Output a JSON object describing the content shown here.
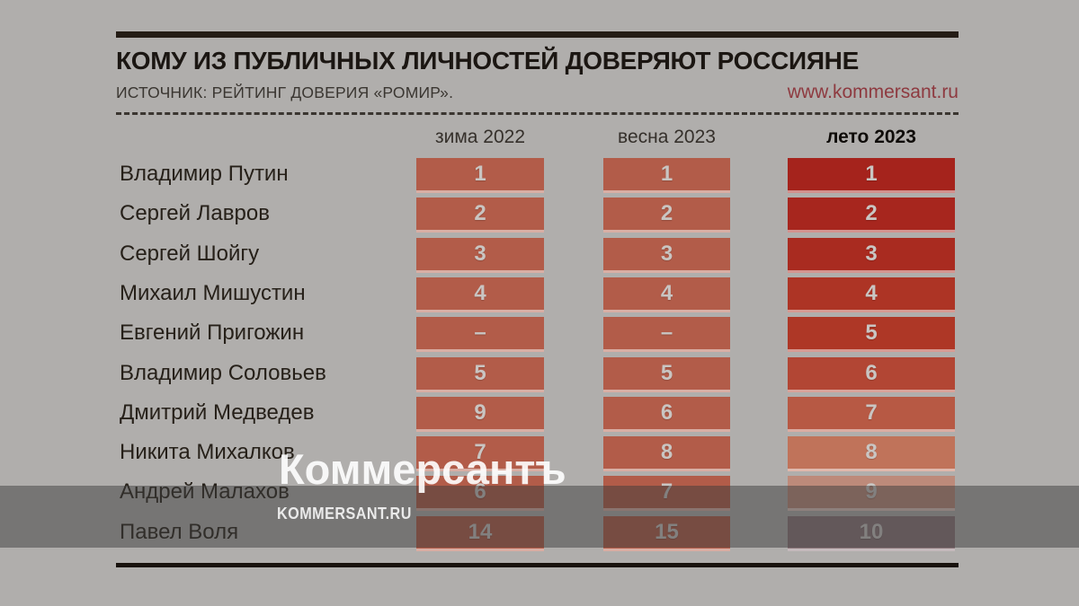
{
  "header": {
    "title": "КОМУ ИЗ ПУБЛИЧНЫХ ЛИЧНОСТЕЙ ДОВЕРЯЮТ РОССИЯНЕ",
    "source": "ИСТОЧНИК: РЕЙТИНГ ДОВЕРИЯ «РОМИР».",
    "url": "www.kommersant.ru"
  },
  "watermark": {
    "logo": "Коммерсантъ",
    "domain": "KOMMERSANT.RU"
  },
  "chart_data": {
    "type": "table",
    "title": "КОМУ ИЗ ПУБЛИЧНЫХ ЛИЧНОСТЕЙ ДОВЕРЯЮТ РОССИЯНЕ",
    "source": "РЕЙТИНГ ДОВЕРИЯ «РОМИР»",
    "columns": [
      "зима 2022",
      "весна 2023",
      "лето 2023"
    ],
    "value_meaning": "rank",
    "rows": [
      {
        "name": "Владимир Путин",
        "values": [
          "1",
          "1",
          "1"
        ]
      },
      {
        "name": "Сергей Лавров",
        "values": [
          "2",
          "2",
          "2"
        ]
      },
      {
        "name": "Сергей Шойгу",
        "values": [
          "3",
          "3",
          "3"
        ]
      },
      {
        "name": "Михаил Мишустин",
        "values": [
          "4",
          "4",
          "4"
        ]
      },
      {
        "name": "Евгений Пригожин",
        "values": [
          "–",
          "–",
          "5"
        ]
      },
      {
        "name": "Владимир Соловьев",
        "values": [
          "5",
          "5",
          "6"
        ]
      },
      {
        "name": "Дмитрий Медведев",
        "values": [
          "9",
          "6",
          "7"
        ]
      },
      {
        "name": "Никита Михалков",
        "values": [
          "7",
          "8",
          "8"
        ]
      },
      {
        "name": "Андрей Малахов",
        "values": [
          "6",
          "7",
          "9"
        ]
      },
      {
        "name": "Павел Воля",
        "values": [
          "14",
          "15",
          "10"
        ]
      }
    ]
  },
  "colors": {
    "background": "#b0aeac",
    "url_red": "#8e3a40",
    "cell_winter_spring": "#b25c49",
    "summer_gradient": [
      "#a5231c",
      "#a7261e",
      "#a92b20",
      "#ad3425",
      "#ae3726",
      "#b24634",
      "#b75944",
      "#c0735a",
      "#bd8a7a",
      "#8a7478"
    ],
    "number_text": "#c9c5c2",
    "watermark_band": "rgba(60,60,60,0.5)"
  }
}
